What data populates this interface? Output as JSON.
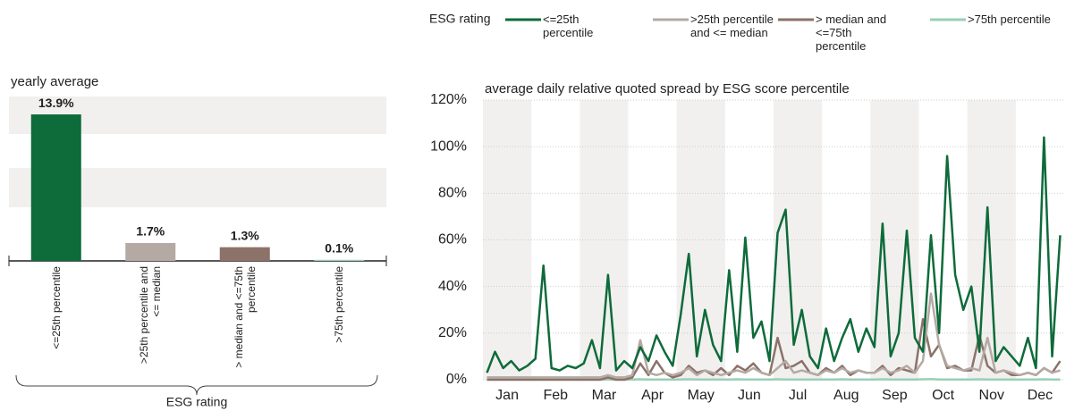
{
  "chart_data": [
    {
      "type": "bar",
      "title": "yearly average",
      "xlabel": "ESG rating",
      "categories": [
        "<=25th percentile",
        ">25th percentile and <= median",
        "> median and <=75th percentile",
        ">75th percentile"
      ],
      "values": [
        13.9,
        1.7,
        1.3,
        0.1
      ],
      "value_labels": [
        "13.9%",
        "1.7%",
        "1.3%",
        "0.1%"
      ],
      "colors": [
        "#0e6b3a",
        "#b5a9a4",
        "#8c7269",
        "#99cfb5"
      ],
      "ylim": [
        0,
        15.6
      ]
    },
    {
      "type": "line",
      "title": "average daily relative quoted spread by ESG score percentile",
      "legend_title": "ESG rating",
      "categories": [
        null,
        null,
        "Jan",
        null,
        null,
        null,
        null,
        null,
        "Feb",
        null,
        null,
        null,
        null,
        null,
        "Mar",
        null,
        null,
        null,
        null,
        null,
        "Apr",
        null,
        null,
        null,
        null,
        null,
        "May",
        null,
        null,
        null,
        null,
        null,
        "Jun",
        null,
        null,
        null,
        null,
        null,
        "Jul",
        null,
        null,
        null,
        null,
        null,
        "Aug",
        null,
        null,
        null,
        null,
        null,
        "Sep",
        null,
        null,
        null,
        null,
        null,
        "Oct",
        null,
        null,
        null,
        null,
        null,
        "Nov",
        null,
        null,
        null,
        null,
        null,
        "Dec",
        null,
        null,
        null
      ],
      "ylim": [
        0,
        120
      ],
      "yticks": [
        {
          "value": 0,
          "label": "0%"
        },
        {
          "value": 20,
          "label": "20%"
        },
        {
          "value": 40,
          "label": "40%"
        },
        {
          "value": 60,
          "label": "60%"
        },
        {
          "value": 80,
          "label": "80%"
        },
        {
          "value": 100,
          "label": "100%"
        },
        {
          "value": 120,
          "label": "120%"
        }
      ],
      "grid": true,
      "series": [
        {
          "name": "<=25th percentile",
          "color": "#0e6b3a",
          "values": [
            3,
            12,
            5,
            8,
            4,
            6,
            9,
            49,
            5,
            4,
            6,
            5,
            7,
            17,
            5,
            45,
            4,
            8,
            5,
            14,
            8,
            19,
            12,
            6,
            28,
            54,
            10,
            30,
            15,
            8,
            47,
            12,
            61,
            18,
            25,
            8,
            63,
            73,
            15,
            30,
            10,
            5,
            22,
            8,
            18,
            26,
            12,
            22,
            14,
            67,
            10,
            20,
            64,
            18,
            12,
            62,
            20,
            96,
            45,
            30,
            40,
            12,
            74,
            8,
            14,
            10,
            6,
            18,
            5,
            104,
            10,
            62
          ]
        },
        {
          "name": ">25th percentile and <= median",
          "color": "#b5a9a4",
          "values": [
            1,
            1,
            1,
            1,
            1,
            1,
            1,
            1,
            1,
            1,
            1,
            1,
            1,
            1,
            1,
            2,
            1,
            1,
            2,
            17,
            3,
            2,
            3,
            2,
            3,
            5,
            2,
            4,
            3,
            2,
            3,
            4,
            3,
            5,
            3,
            2,
            5,
            8,
            3,
            4,
            3,
            2,
            4,
            3,
            5,
            3,
            4,
            3,
            3,
            5,
            3,
            4,
            6,
            3,
            8,
            37,
            15,
            6,
            5,
            4,
            5,
            4,
            18,
            3,
            4,
            3,
            2,
            3,
            2,
            5,
            3,
            4
          ]
        },
        {
          "name": "> median and <=75th percentile",
          "color": "#8c7269",
          "values": [
            0,
            0,
            0,
            0,
            0,
            0,
            0,
            0,
            0,
            0,
            0,
            0,
            0,
            0,
            0,
            1,
            0,
            0,
            1,
            7,
            2,
            8,
            3,
            1,
            2,
            6,
            3,
            4,
            2,
            5,
            2,
            6,
            4,
            7,
            3,
            2,
            18,
            5,
            6,
            8,
            3,
            2,
            5,
            3,
            6,
            2,
            4,
            3,
            3,
            6,
            2,
            5,
            4,
            3,
            26,
            10,
            15,
            5,
            6,
            4,
            4,
            19,
            6,
            3,
            4,
            2,
            2,
            3,
            2,
            5,
            3,
            8
          ]
        },
        {
          "name": ">75th percentile",
          "color": "#99cfb5",
          "values": [
            0.1,
            0.1,
            0.1,
            0.1,
            0.1,
            0.1,
            0.1,
            0.1,
            0.1,
            0.1,
            0.1,
            0.1,
            0.1,
            0.1,
            0.1,
            0.1,
            0.1,
            0.1,
            0.1,
            0.2,
            0.1,
            0.1,
            0.1,
            0.1,
            0.1,
            0.2,
            0.1,
            0.1,
            0.1,
            0.1,
            0.1,
            0.2,
            0.1,
            0.1,
            0.1,
            0.1,
            0.2,
            0.1,
            0.1,
            0.1,
            0.1,
            0.1,
            0.1,
            0.1,
            0.2,
            0.1,
            0.1,
            0.1,
            0.1,
            0.2,
            0.1,
            0.1,
            0.1,
            0.1,
            0.2,
            0.3,
            0.1,
            0.1,
            0.1,
            0.1,
            0.1,
            0.2,
            0.1,
            0.1,
            0.1,
            0.1,
            0.1,
            0.1,
            0.1,
            0.2,
            0.1,
            0.1
          ]
        }
      ]
    }
  ]
}
